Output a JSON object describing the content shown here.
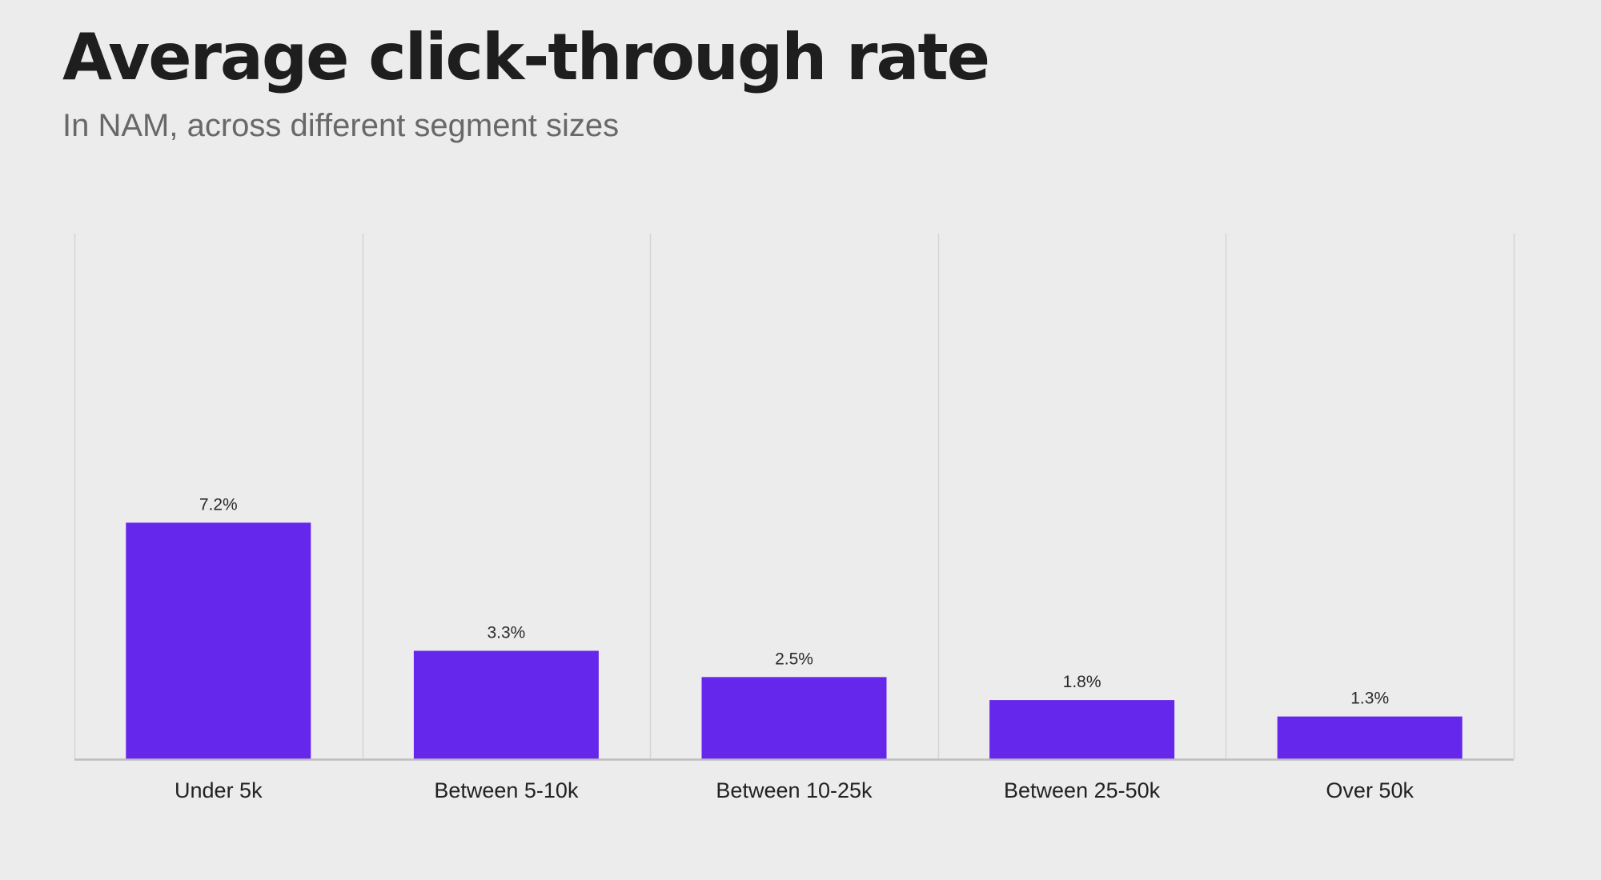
{
  "header": {
    "title": "Average click-through rate",
    "subtitle": "In NAM, across different segment sizes"
  },
  "colors": {
    "bar": "#6627ec",
    "grid": "#d6d6d6",
    "axis": "#bdbdbd",
    "background": "#ececec"
  },
  "chart_data": {
    "type": "bar",
    "title": "Average click-through rate",
    "subtitle": "In NAM, across different segment sizes",
    "categories": [
      "Under 5k",
      "Between 5-10k",
      "Between 10-25k",
      "Between 25-50k",
      "Over 50k"
    ],
    "values": [
      7.2,
      3.3,
      2.5,
      1.8,
      1.3
    ],
    "value_labels": [
      "7.2%",
      "3.3%",
      "2.5%",
      "1.8%",
      "1.3%"
    ],
    "xlabel": "",
    "ylabel": "",
    "ylim": [
      0,
      16
    ],
    "grid": "vertical",
    "legend": "none"
  }
}
